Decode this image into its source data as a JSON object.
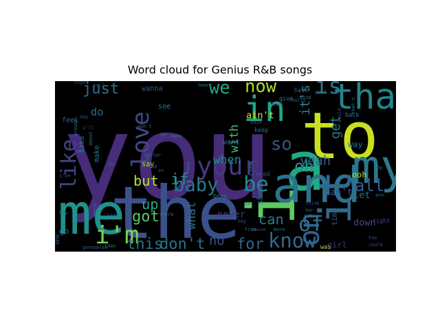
{
  "chart_data": {
    "type": "wordcloud",
    "title": "Word cloud for Genius R&B songs",
    "background": "#000000",
    "colormap": "viridis",
    "words": [
      {
        "text": "you",
        "weight": 1.0,
        "color": "#472c7a",
        "rotated": false
      },
      {
        "text": "the",
        "weight": 0.62,
        "color": "#3b518b",
        "rotated": false
      },
      {
        "text": "to",
        "weight": 0.55,
        "color": "#c8e020",
        "rotated": false
      },
      {
        "text": "i",
        "weight": 0.56,
        "color": "#5ec962",
        "rotated": true
      },
      {
        "text": "me",
        "weight": 0.48,
        "color": "#21918c",
        "rotated": false
      },
      {
        "text": "a",
        "weight": 0.58,
        "color": "#22a884",
        "rotated": false
      },
      {
        "text": "and",
        "weight": 0.42,
        "color": "#2c728e",
        "rotated": false
      },
      {
        "text": "my",
        "weight": 0.4,
        "color": "#2a788e",
        "rotated": false
      },
      {
        "text": "it",
        "weight": 0.38,
        "color": "#30698e",
        "rotated": true
      },
      {
        "text": "that",
        "weight": 0.3,
        "color": "#25838e",
        "rotated": false
      },
      {
        "text": "in",
        "weight": 0.3,
        "color": "#20a386",
        "rotated": false
      },
      {
        "text": "your",
        "weight": 0.22,
        "color": "#443983",
        "rotated": false
      },
      {
        "text": "i'm",
        "weight": 0.21,
        "color": "#7ad151",
        "rotated": false
      },
      {
        "text": "on",
        "weight": 0.24,
        "color": "#35608d",
        "rotated": true
      },
      {
        "text": "is",
        "weight": 0.19,
        "color": "#2a788e",
        "rotated": false
      },
      {
        "text": "love",
        "weight": 0.2,
        "color": "#3e4a89",
        "rotated": true
      },
      {
        "text": "like",
        "weight": 0.18,
        "color": "#414487",
        "rotated": true
      },
      {
        "text": "be",
        "weight": 0.18,
        "color": "#23898e",
        "rotated": false
      },
      {
        "text": "know",
        "weight": 0.17,
        "color": "#31688e",
        "rotated": false
      },
      {
        "text": "baby",
        "weight": 0.16,
        "color": "#2a788e",
        "rotated": false
      },
      {
        "text": "of",
        "weight": 0.18,
        "color": "#2c728e",
        "rotated": false
      },
      {
        "text": "now",
        "weight": 0.15,
        "color": "#addc30",
        "rotated": false
      },
      {
        "text": "we",
        "weight": 0.15,
        "color": "#22a884",
        "rotated": false
      },
      {
        "text": "all",
        "weight": 0.14,
        "color": "#355f8d",
        "rotated": false
      },
      {
        "text": "oh",
        "weight": 0.14,
        "color": "#1f988b",
        "rotated": false
      },
      {
        "text": "just",
        "weight": 0.13,
        "color": "#2c728e",
        "rotated": false
      },
      {
        "text": "so",
        "weight": 0.15,
        "color": "#3b528b",
        "rotated": false
      },
      {
        "text": "don't",
        "weight": 0.13,
        "color": "#2d708e",
        "rotated": false
      },
      {
        "text": "this",
        "weight": 0.13,
        "color": "#2c728e",
        "rotated": false
      },
      {
        "text": "for",
        "weight": 0.13,
        "color": "#33638d",
        "rotated": false
      },
      {
        "text": "can",
        "weight": 0.12,
        "color": "#2a788e",
        "rotated": false
      },
      {
        "text": "got",
        "weight": 0.13,
        "color": "#5ec962",
        "rotated": false
      },
      {
        "text": "up",
        "weight": 0.12,
        "color": "#22a884",
        "rotated": false
      },
      {
        "text": "but",
        "weight": 0.12,
        "color": "#b5de2b",
        "rotated": false
      },
      {
        "text": "if",
        "weight": 0.13,
        "color": "#21918c",
        "rotated": false
      },
      {
        "text": "no",
        "weight": 0.11,
        "color": "#3b528b",
        "rotated": false
      },
      {
        "text": "yeah",
        "weight": 0.11,
        "color": "#34618d",
        "rotated": false
      },
      {
        "text": "get",
        "weight": 0.11,
        "color": "#2a788e",
        "rotated": true
      },
      {
        "text": "it's",
        "weight": 0.11,
        "color": "#27808e",
        "rotated": true
      },
      {
        "text": "when",
        "weight": 0.1,
        "color": "#21918c",
        "rotated": false
      },
      {
        "text": "with",
        "weight": 0.1,
        "color": "#44bf70",
        "rotated": true
      },
      {
        "text": "what",
        "weight": 0.1,
        "color": "#2c728e",
        "rotated": true
      },
      {
        "text": "do",
        "weight": 0.09,
        "color": "#2e6f8e",
        "rotated": false
      },
      {
        "text": "ain't",
        "weight": 0.08,
        "color": "#dde318",
        "rotated": false
      },
      {
        "text": "down",
        "weight": 0.08,
        "color": "#3e4a89",
        "rotated": false
      },
      {
        "text": "let",
        "weight": 0.08,
        "color": "#2a788e",
        "rotated": false
      },
      {
        "text": "never",
        "weight": 0.08,
        "color": "#443a83",
        "rotated": false
      },
      {
        "text": "can't",
        "weight": 0.08,
        "color": "#3b518b",
        "rotated": false
      },
      {
        "text": "she",
        "weight": 0.07,
        "color": "#2a788e",
        "rotated": true
      },
      {
        "text": "way",
        "weight": 0.07,
        "color": "#2c728e",
        "rotated": false
      },
      {
        "text": "ooh",
        "weight": 0.07,
        "color": "#c2df23",
        "rotated": false
      },
      {
        "text": "girl",
        "weight": 0.07,
        "color": "#46327e",
        "rotated": false
      },
      {
        "text": "go",
        "weight": 0.07,
        "color": "#2c728e",
        "rotated": false
      },
      {
        "text": "feel",
        "weight": 0.06,
        "color": "#34618d",
        "rotated": false
      },
      {
        "text": "want",
        "weight": 0.06,
        "color": "#2c728e",
        "rotated": false
      },
      {
        "text": "say",
        "weight": 0.06,
        "color": "#b5de2b",
        "rotated": false
      },
      {
        "text": "make",
        "weight": 0.06,
        "color": "#2c728e",
        "rotated": true
      },
      {
        "text": "wanna",
        "weight": 0.06,
        "color": "#3b518b",
        "rotated": false
      },
      {
        "text": "see",
        "weight": 0.06,
        "color": "#2a788e",
        "rotated": false
      },
      {
        "text": "time",
        "weight": 0.06,
        "color": "#355f8d",
        "rotated": true
      },
      {
        "text": "take",
        "weight": 0.06,
        "color": "#2a788e",
        "rotated": true
      },
      {
        "text": "one",
        "weight": 0.05,
        "color": "#34618d",
        "rotated": true
      },
      {
        "text": "right",
        "weight": 0.05,
        "color": "#414487",
        "rotated": false
      },
      {
        "text": "been",
        "weight": 0.05,
        "color": "#2a788e",
        "rotated": false
      },
      {
        "text": "need",
        "weight": 0.05,
        "color": "#3b528b",
        "rotated": false
      },
      {
        "text": "come",
        "weight": 0.05,
        "color": "#2c728e",
        "rotated": true
      },
      {
        "text": "back",
        "weight": 0.05,
        "color": "#2a788e",
        "rotated": false
      },
      {
        "text": "have",
        "weight": 0.05,
        "color": "#34618d",
        "rotated": false
      },
      {
        "text": "keep",
        "weight": 0.05,
        "color": "#2c728e",
        "rotated": false
      },
      {
        "text": "give",
        "weight": 0.05,
        "color": "#2a788e",
        "rotated": false
      },
      {
        "text": "was",
        "weight": 0.05,
        "color": "#addc30",
        "rotated": false
      },
      {
        "text": "could",
        "weight": 0.04,
        "color": "#3b518b",
        "rotated": false
      },
      {
        "text": "also",
        "weight": 0.04,
        "color": "#2c728e",
        "rotated": false
      },
      {
        "text": "cause",
        "weight": 0.04,
        "color": "#3e4a89",
        "rotated": false
      },
      {
        "text": "more",
        "weight": 0.04,
        "color": "#2a788e",
        "rotated": false
      },
      {
        "text": "gonna",
        "weight": 0.04,
        "color": "#355f8d",
        "rotated": false
      },
      {
        "text": "there",
        "weight": 0.04,
        "color": "#2c728e",
        "rotated": false
      },
      {
        "text": "they",
        "weight": 0.04,
        "color": "#2a788e",
        "rotated": true
      },
      {
        "text": "night",
        "weight": 0.04,
        "color": "#3b518b",
        "rotated": false
      },
      {
        "text": "life",
        "weight": 0.04,
        "color": "#2c728e",
        "rotated": false
      },
      {
        "text": "than",
        "weight": 0.04,
        "color": "#2a788e",
        "rotated": false
      },
      {
        "text": "said",
        "weight": 0.04,
        "color": "#34618d",
        "rotated": false
      },
      {
        "text": "good",
        "weight": 0.04,
        "color": "#2c728e",
        "rotated": false
      },
      {
        "text": "think",
        "weight": 0.04,
        "color": "#3b518b",
        "rotated": false
      },
      {
        "text": "her",
        "weight": 0.04,
        "color": "#2a788e",
        "rotated": false
      },
      {
        "text": "out",
        "weight": 0.04,
        "color": "#2c728e",
        "rotated": false
      },
      {
        "text": "too",
        "weight": 0.04,
        "color": "#355f8d",
        "rotated": false
      },
      {
        "text": "that's",
        "weight": 0.04,
        "color": "#2a788e",
        "rotated": true
      },
      {
        "text": "would",
        "weight": 0.04,
        "color": "#3b518b",
        "rotated": true
      },
      {
        "text": "about",
        "weight": 0.04,
        "color": "#2c728e",
        "rotated": true
      },
      {
        "text": "tell",
        "weight": 0.04,
        "color": "#34618d",
        "rotated": false
      },
      {
        "text": "heart",
        "weight": 0.04,
        "color": "#2a788e",
        "rotated": false
      },
      {
        "text": "really",
        "weight": 0.04,
        "color": "#3b518b",
        "rotated": false
      },
      {
        "text": "mind",
        "weight": 0.04,
        "color": "#2c728e",
        "rotated": false
      },
      {
        "text": "are",
        "weight": 0.04,
        "color": "#2a788e",
        "rotated": false
      },
      {
        "text": "will",
        "weight": 0.04,
        "color": "#34618d",
        "rotated": false
      },
      {
        "text": "ya",
        "weight": 0.04,
        "color": "#2c728e",
        "rotated": false
      },
      {
        "text": "hey",
        "weight": 0.04,
        "color": "#3b518b",
        "rotated": false
      },
      {
        "text": "from",
        "weight": 0.04,
        "color": "#2a788e",
        "rotated": false
      },
      {
        "text": "away",
        "weight": 0.04,
        "color": "#2c728e",
        "rotated": false
      },
      {
        "text": "stop",
        "weight": 0.04,
        "color": "#34618d",
        "rotated": false
      },
      {
        "text": "where",
        "weight": 0.04,
        "color": "#2a788e",
        "rotated": true
      },
      {
        "text": "day",
        "weight": 0.04,
        "color": "#3b518b",
        "rotated": false
      },
      {
        "text": "not",
        "weight": 0.04,
        "color": "#2c728e",
        "rotated": false
      },
      {
        "text": "how",
        "weight": 0.04,
        "color": "#2a788e",
        "rotated": false
      },
      {
        "text": "i've",
        "weight": 0.04,
        "color": "#34618d",
        "rotated": false
      },
      {
        "text": "he",
        "weight": 0.04,
        "color": "#2c728e",
        "rotated": false
      },
      {
        "text": "as",
        "weight": 0.04,
        "color": "#3b518b",
        "rotated": false
      },
      {
        "text": "around",
        "weight": 0.04,
        "color": "#2a788e",
        "rotated": true
      },
      {
        "text": "won't",
        "weight": 0.04,
        "color": "#2c728e",
        "rotated": false
      },
      {
        "text": "better",
        "weight": 0.04,
        "color": "#34618d",
        "rotated": false
      },
      {
        "text": "why",
        "weight": 0.04,
        "color": "#2a788e",
        "rotated": false
      },
      {
        "text": "i'll",
        "weight": 0.04,
        "color": "#3b518b",
        "rotated": false
      },
      {
        "text": "uh",
        "weight": 0.04,
        "color": "#2c728e",
        "rotated": false
      }
    ]
  }
}
